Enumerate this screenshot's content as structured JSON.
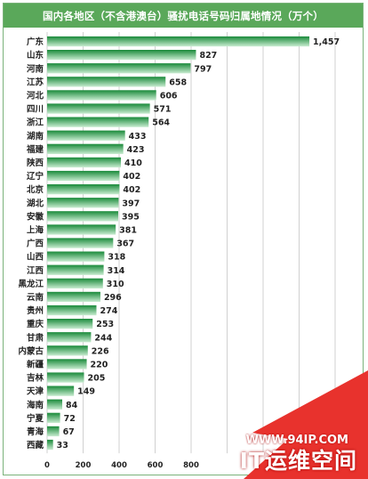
{
  "title": "国内各地区（不含港澳台）骚扰电话号码归属地情况（万个）",
  "watermark": {
    "url": "WWW.94IP.COM",
    "brand": "IT运维空间"
  },
  "colors": {
    "title_bg": "#5aa85a",
    "bar_top": "#1a8a3a",
    "bar_bottom": "#c9ecd1",
    "watermark_bg": "#e8322d"
  },
  "chart_data": {
    "type": "bar",
    "orientation": "horizontal",
    "title": "国内各地区（不含港澳台）骚扰电话号码归属地情况（万个）",
    "categories": [
      "广东",
      "山东",
      "河南",
      "江苏",
      "河北",
      "四川",
      "浙江",
      "湖南",
      "福建",
      "陕西",
      "辽宁",
      "北京",
      "湖北",
      "安徽",
      "上海",
      "广西",
      "山西",
      "江西",
      "黑龙江",
      "云南",
      "贵州",
      "重庆",
      "甘肃",
      "内蒙古",
      "新疆",
      "吉林",
      "天津",
      "海南",
      "宁夏",
      "青海",
      "西藏"
    ],
    "values": [
      1457,
      827,
      797,
      658,
      606,
      571,
      564,
      433,
      423,
      410,
      402,
      402,
      397,
      395,
      381,
      367,
      318,
      314,
      310,
      296,
      274,
      253,
      244,
      226,
      220,
      205,
      149,
      84,
      72,
      67,
      33
    ],
    "value_labels": [
      "1,457",
      "827",
      "797",
      "658",
      "606",
      "571",
      "564",
      "433",
      "423",
      "410",
      "402",
      "402",
      "397",
      "395",
      "381",
      "367",
      "318",
      "314",
      "310",
      "296",
      "274",
      "253",
      "244",
      "226",
      "220",
      "205",
      "149",
      "84",
      "72",
      "67",
      "33"
    ],
    "xticks": [
      0,
      200,
      400,
      600,
      800
    ],
    "xlim": [
      0,
      1600
    ],
    "grid": true
  }
}
